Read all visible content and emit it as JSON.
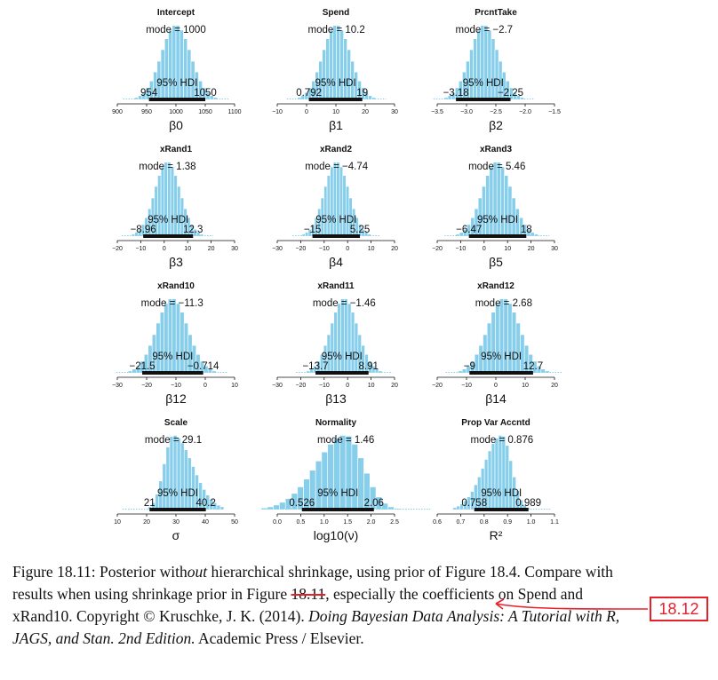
{
  "chart_data": [
    {
      "type": "histogram",
      "title": "Intercept",
      "xlabel": "β0",
      "mode_label": "mode = 1000",
      "mode": 1000,
      "hdi_label": "95% HDI",
      "hdi_low": 954,
      "hdi_high": 1050,
      "hdi_low_label": "954",
      "hdi_high_label": "1050",
      "xlim": [
        900,
        1100
      ],
      "ticks": [
        "900",
        "950",
        "1000",
        "1050",
        "1100"
      ],
      "sd": 25
    },
    {
      "type": "histogram",
      "title": "Spend",
      "xlabel": "β1",
      "mode_label": "mode = 10.2",
      "mode": 10.2,
      "hdi_label": "95% HDI",
      "hdi_low": 0.792,
      "hdi_high": 19,
      "hdi_low_label": "0.792",
      "hdi_high_label": "19",
      "xlim": [
        -10,
        30
      ],
      "ticks": [
        "−10",
        "0",
        "10",
        "20",
        "30"
      ],
      "sd": 4.7
    },
    {
      "type": "histogram",
      "title": "PrcntTake",
      "xlabel": "β2",
      "mode_label": "mode = −2.7",
      "mode": -2.7,
      "hdi_label": "95% HDI",
      "hdi_low": -3.18,
      "hdi_high": -2.25,
      "hdi_low_label": "−3.18",
      "hdi_high_label": "−2.25",
      "xlim": [
        -3.5,
        -1.5
      ],
      "ticks": [
        "−3.5",
        "−3.0",
        "−2.5",
        "−2.0",
        "−1.5"
      ],
      "sd": 0.24
    },
    {
      "type": "histogram",
      "title": "xRand1",
      "xlabel": "β3",
      "mode_label": "mode = 1.38",
      "mode": 1.38,
      "hdi_label": "95% HDI",
      "hdi_low": -8.96,
      "hdi_high": 12.3,
      "hdi_low_label": "−8.96",
      "hdi_high_label": "12.3",
      "xlim": [
        -20,
        30
      ],
      "ticks": [
        "−20",
        "−10",
        "0",
        "10",
        "20",
        "30"
      ],
      "sd": 5.4
    },
    {
      "type": "histogram",
      "title": "xRand2",
      "xlabel": "β4",
      "mode_label": "mode = −4.74",
      "mode": -4.74,
      "hdi_label": "95% HDI",
      "hdi_low": -15,
      "hdi_high": 5.25,
      "hdi_low_label": "−15",
      "hdi_high_label": "5.25",
      "xlim": [
        -30,
        20
      ],
      "ticks": [
        "−30",
        "−20",
        "−10",
        "0",
        "10",
        "20"
      ],
      "sd": 5.2
    },
    {
      "type": "histogram",
      "title": "xRand3",
      "xlabel": "β5",
      "mode_label": "mode = 5.46",
      "mode": 5.46,
      "hdi_label": "95% HDI",
      "hdi_low": -6.47,
      "hdi_high": 18,
      "hdi_low_label": "−6.47",
      "hdi_high_label": "18",
      "xlim": [
        -20,
        30
      ],
      "ticks": [
        "−20",
        "−10",
        "0",
        "10",
        "20",
        "30"
      ],
      "sd": 6.2
    },
    {
      "type": "histogram",
      "title": "xRand10",
      "xlabel": "β12",
      "mode_label": "mode = −11.3",
      "mode": -11.3,
      "hdi_label": "95% HDI",
      "hdi_low": -21.5,
      "hdi_high": -0.714,
      "hdi_low_label": "−21.5",
      "hdi_high_label": "−0.714",
      "xlim": [
        -30,
        10
      ],
      "ticks": [
        "−30",
        "−20",
        "−10",
        "0",
        "10"
      ],
      "sd": 5.3
    },
    {
      "type": "histogram",
      "title": "xRand11",
      "xlabel": "β13",
      "mode_label": "mode = −1.46",
      "mode": -1.46,
      "hdi_label": "95% HDI",
      "hdi_low": -13.7,
      "hdi_high": 8.91,
      "hdi_low_label": "−13.7",
      "hdi_high_label": "8.91",
      "xlim": [
        -30,
        20
      ],
      "ticks": [
        "−30",
        "−20",
        "−10",
        "0",
        "10",
        "20"
      ],
      "sd": 5.7
    },
    {
      "type": "histogram",
      "title": "xRand12",
      "xlabel": "β14",
      "mode_label": "mode = 2.68",
      "mode": 2.68,
      "hdi_label": "95% HDI",
      "hdi_low": -9,
      "hdi_high": 12.7,
      "hdi_low_label": "−9",
      "hdi_high_label": "12.7",
      "xlim": [
        -20,
        20
      ],
      "ticks": [
        "−20",
        "−10",
        "0",
        "10",
        "20"
      ],
      "sd": 5.5
    },
    {
      "type": "histogram",
      "title": "Scale",
      "xlabel": "σ",
      "mode_label": "mode = 29.1",
      "mode": 29.1,
      "hdi_label": "95% HDI",
      "hdi_low": 21,
      "hdi_high": 40.2,
      "hdi_low_label": "21",
      "hdi_high_label": "40.2",
      "xlim": [
        10,
        50
      ],
      "ticks": [
        "10",
        "20",
        "30",
        "40",
        "50"
      ],
      "sd": 4.8,
      "skew": 0.35
    },
    {
      "type": "histogram",
      "title": "Normality",
      "xlabel": "log10(ν)",
      "mode_label": "mode = 1.46",
      "mode": 1.46,
      "hdi_label": "95% HDI",
      "hdi_low": 0.526,
      "hdi_high": 2.06,
      "hdi_low_label": "0.526",
      "hdi_high_label": "2.06",
      "xlim": [
        0,
        2.5
      ],
      "ticks": [
        "0.0",
        "0.5",
        "1.0",
        "1.5",
        "2.0",
        "2.5"
      ],
      "sd": 0.5,
      "skew": -0.25
    },
    {
      "type": "histogram",
      "title": "Prop Var Accntd",
      "xlabel": "R²",
      "mode_label": "mode = 0.876",
      "mode": 0.876,
      "hdi_label": "95% HDI",
      "hdi_low": 0.758,
      "hdi_high": 0.989,
      "hdi_low_label": "0.758",
      "hdi_high_label": "0.989",
      "xlim": [
        0.6,
        1.1
      ],
      "ticks": [
        "0.6",
        "0.7",
        "0.8",
        "0.9",
        "1.0",
        "1.1"
      ],
      "sd": 0.058,
      "skew": -0.3
    }
  ],
  "colors": {
    "bar_fill": "#87ceeb",
    "bar_edge": "#ffffff",
    "hdi_bar": "#111111",
    "correction": "#e8202a"
  },
  "caption": {
    "part1": "Figure 18.11: Posterior with",
    "part1_em": "out",
    "part2": " hierarchical shrinkage, using prior of Figure 18.4. Compare with results when using shrinkage prior in Figure ",
    "struck": "18.11",
    "part3": ", especially the coefficients on Spend and xRand10. Copyright © Kruschke, J. K. (2014). ",
    "book": "Doing Bayesian Data Analysis: A Tutorial with R, JAGS, and Stan. 2nd Edition.",
    "part4": " Academic Press / Elsevier."
  },
  "correction_label": "18.12"
}
